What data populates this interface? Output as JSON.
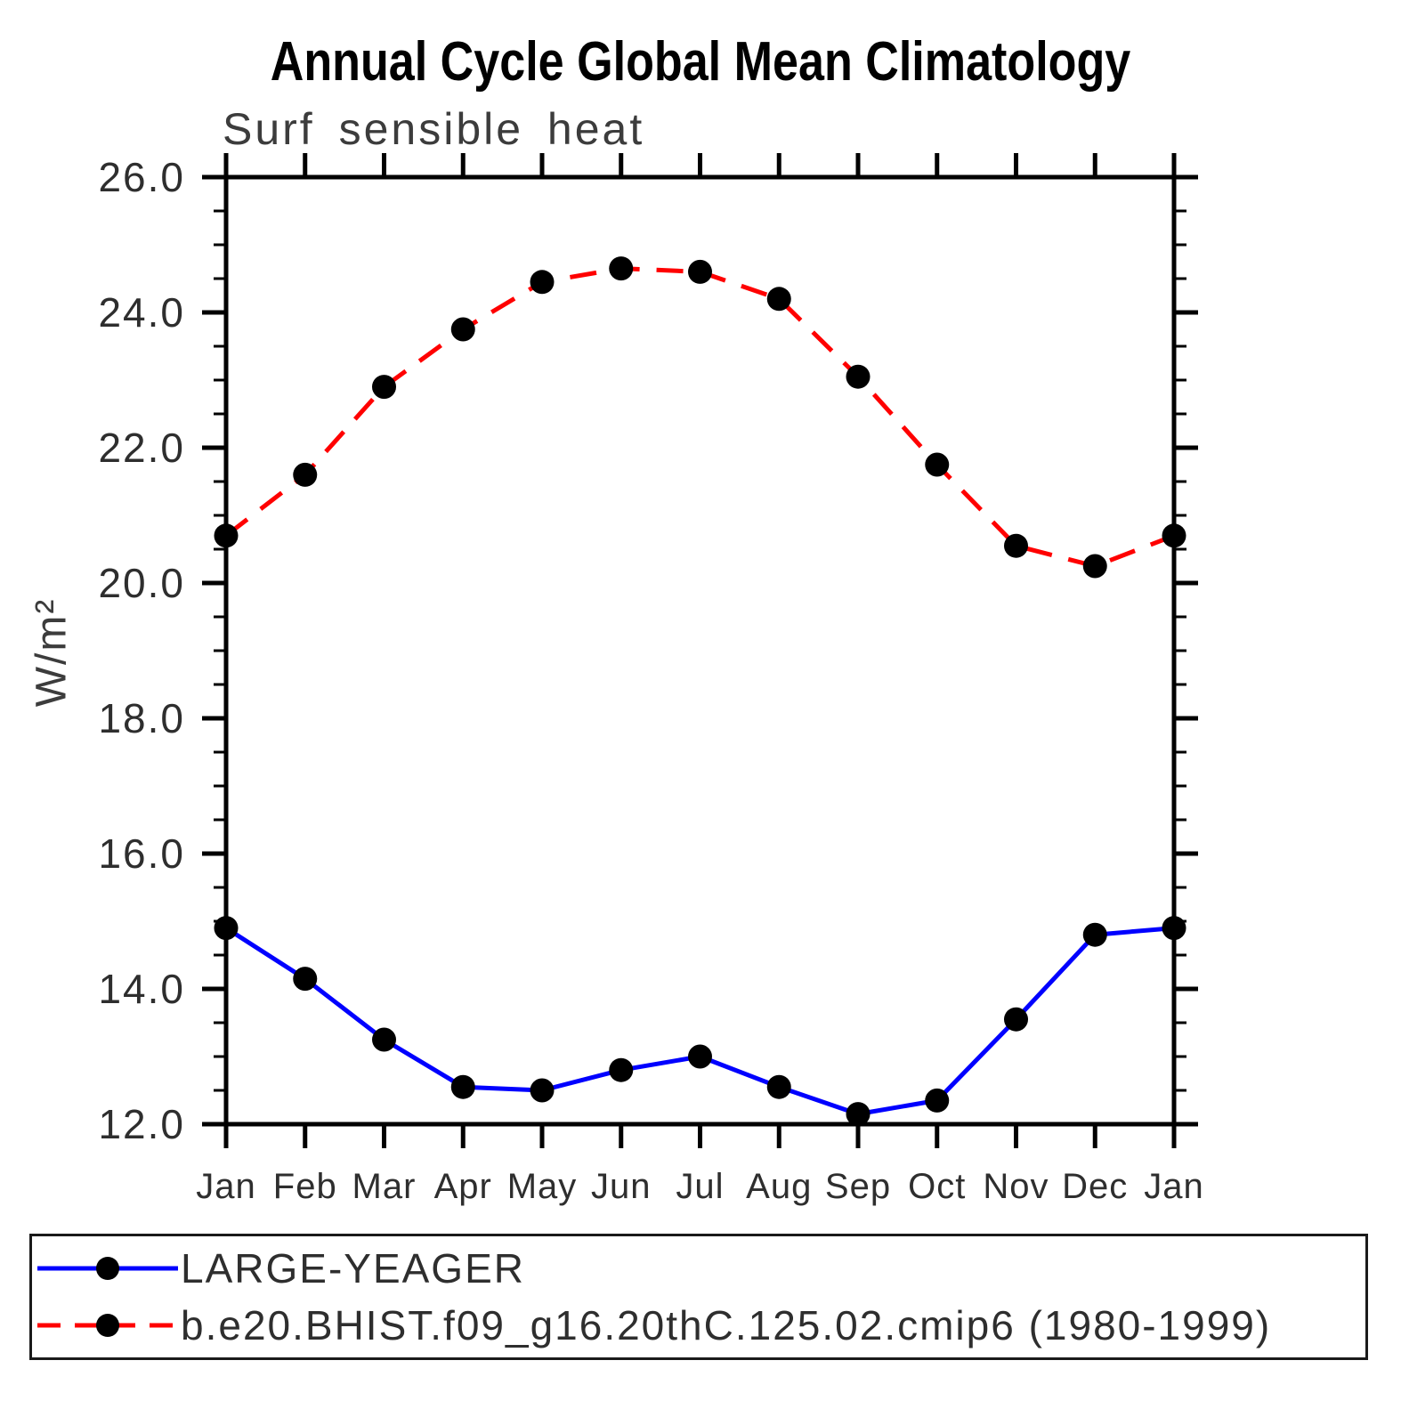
{
  "header": {
    "title": "Annual Cycle Global Mean Climatology",
    "subtitle": "Surf sensible heat"
  },
  "chart_data": {
    "type": "line",
    "title": "Annual Cycle Global Mean Climatology",
    "subtitle": "Surf sensible heat",
    "ylabel": "W/m²",
    "xlabel": "",
    "categories": [
      "Jan",
      "Feb",
      "Mar",
      "Apr",
      "May",
      "Jun",
      "Jul",
      "Aug",
      "Sep",
      "Oct",
      "Nov",
      "Dec",
      "Jan"
    ],
    "ylim": [
      12.0,
      26.0
    ],
    "y_major_step": 2.0,
    "y_minor_step": 0.5,
    "y_tick_labels": [
      "12.0",
      "14.0",
      "16.0",
      "18.0",
      "20.0",
      "22.0",
      "24.0",
      "26.0"
    ],
    "grid": false,
    "legend_position": "bottom",
    "series": [
      {
        "name": "LARGE-YEAGER",
        "color": "#0000ff",
        "line_style": "solid",
        "marker": "filled-circle",
        "marker_color": "#000000",
        "values": [
          14.9,
          14.15,
          13.25,
          12.55,
          12.5,
          12.8,
          13.0,
          12.55,
          12.15,
          12.35,
          13.55,
          14.8,
          14.9
        ]
      },
      {
        "name": "b.e20.BHIST.f09_g16.20thC.125.02.cmip6 (1980-1999)",
        "color": "#ff0000",
        "line_style": "dashed",
        "marker": "filled-circle",
        "marker_color": "#000000",
        "values": [
          20.7,
          21.6,
          22.9,
          23.75,
          24.45,
          24.65,
          24.6,
          24.2,
          23.05,
          21.75,
          20.55,
          20.25,
          20.7
        ]
      }
    ]
  }
}
